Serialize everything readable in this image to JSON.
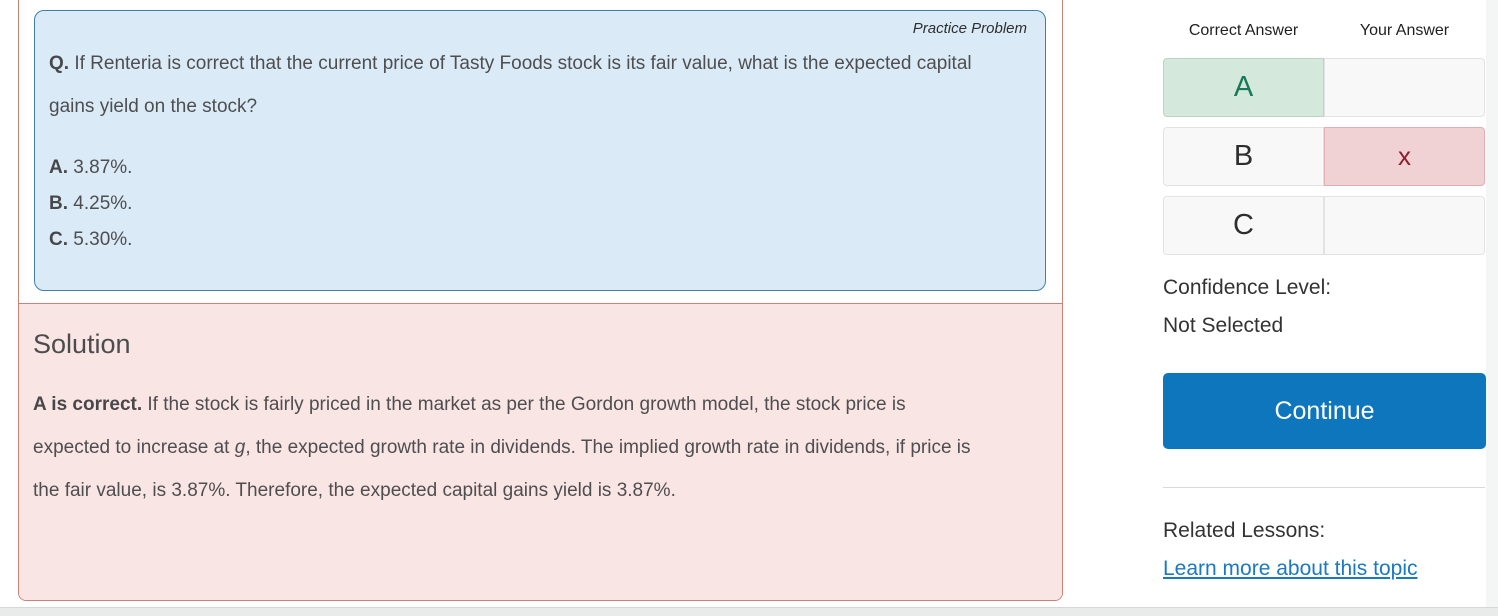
{
  "question_card": {
    "badge": "Practice Problem",
    "prefix": "Q.",
    "text": " If Renteria is correct that the current price of Tasty Foods stock is its fair value, what is the expected capital gains yield on the stock?",
    "options": [
      {
        "letter": "A.",
        "text": " 3.87%."
      },
      {
        "letter": "B.",
        "text": " 4.25%."
      },
      {
        "letter": "C.",
        "text": " 5.30%."
      }
    ]
  },
  "solution": {
    "heading": "Solution",
    "lead": "A is correct.",
    "body_before_g": " If the stock is fairly priced in the market as per the Gordon growth model, the stock price is expected to increase at ",
    "g_symbol": "g",
    "body_after_g": ", the expected growth rate in dividends. The implied growth rate in dividends, if price is the fair value, is 3.87%. Therefore, the expected capital gains yield is 3.87%."
  },
  "answer_panel": {
    "correct_header": "Correct Answer",
    "your_header": "Your Answer",
    "rows": [
      {
        "letter": "A",
        "your_mark": ""
      },
      {
        "letter": "B",
        "your_mark": "x"
      },
      {
        "letter": "C",
        "your_mark": ""
      }
    ],
    "confidence_label": "Confidence Level:",
    "confidence_value": "Not Selected",
    "continue_label": "Continue",
    "related_label": "Related Lessons:",
    "related_link": "Learn more about this topic"
  },
  "colors": {
    "question_bg": "#daeaf7",
    "question_border": "#4180ab",
    "solution_bg": "#f9e5e3",
    "solution_border": "#cb8277",
    "correct_cell_bg": "#d5e8dc",
    "correct_letter": "#187a58",
    "wrong_cell_bg": "#f0d1d4",
    "wrong_mark": "#8e1f2c",
    "continue_button": "#0d76bd",
    "link": "#1b78c3"
  }
}
